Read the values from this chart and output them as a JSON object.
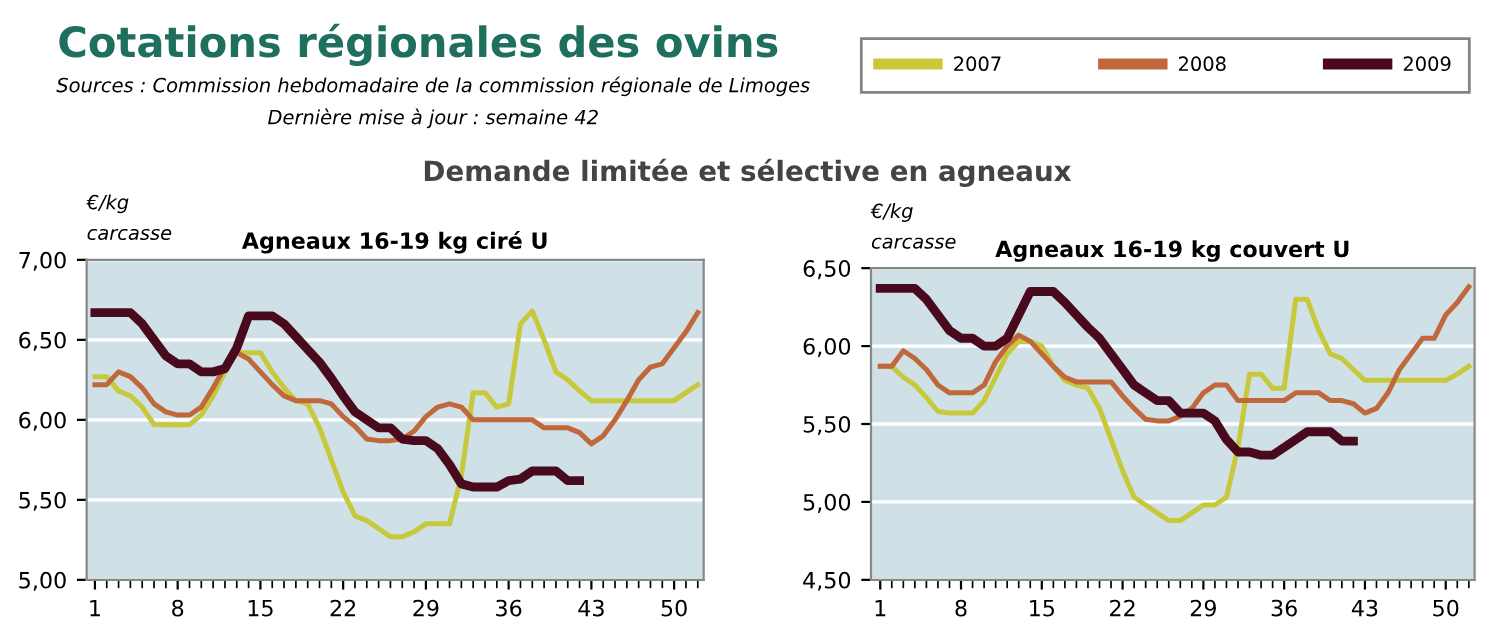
{
  "chart_data": [
    {
      "type": "line",
      "title": "Agneaux 16-19 kg ciré U",
      "ylabel": "€/kg\ncarcasse",
      "annotations": [
        "Cotations régionales des ovins",
        "Sources : Commission hebdomadaire de la commission régionale de Limoges",
        "Dernière mise à jour : semaine 42",
        "Demande limitée et sélective en agneaux"
      ],
      "x": [
        1,
        2,
        3,
        4,
        5,
        6,
        7,
        8,
        9,
        10,
        11,
        12,
        13,
        14,
        15,
        16,
        17,
        18,
        19,
        20,
        21,
        22,
        23,
        24,
        25,
        26,
        27,
        28,
        29,
        30,
        31,
        32,
        33,
        34,
        35,
        36,
        37,
        38,
        39,
        40,
        41,
        42,
        43,
        44,
        45,
        46,
        47,
        48,
        49,
        50,
        51,
        52
      ],
      "xlim": [
        0.3,
        52.5
      ],
      "xticks": [
        1,
        8,
        15,
        22,
        29,
        36,
        43,
        50
      ],
      "ylim": [
        5,
        7
      ],
      "yticks": [
        {
          "value": 5,
          "label": "5,00"
        },
        {
          "value": 5.5,
          "label": "5,50"
        },
        {
          "value": 6,
          "label": "6,00"
        },
        {
          "value": 6.5,
          "label": "6,50"
        },
        {
          "value": 7,
          "label": "7,00"
        }
      ],
      "grid": "y",
      "legend": "top right",
      "marker": "none",
      "line_style": "solid",
      "series": [
        {
          "name": "2007",
          "color": "#c8c83c",
          "values": [
            6.27,
            6.27,
            6.18,
            6.15,
            6.08,
            5.97,
            5.97,
            5.97,
            5.97,
            6.03,
            6.15,
            6.3,
            6.42,
            6.42,
            6.42,
            6.3,
            6.2,
            6.12,
            6.1,
            5.95,
            5.75,
            5.55,
            5.4,
            5.37,
            5.32,
            5.27,
            5.27,
            5.3,
            5.35,
            5.35,
            5.35,
            5.65,
            6.17,
            6.17,
            6.08,
            6.1,
            6.6,
            6.68,
            6.5,
            6.3,
            6.25,
            6.18,
            6.12,
            6.12,
            6.12,
            6.12,
            6.12,
            6.12,
            6.12,
            6.12,
            6.17,
            6.22
          ]
        },
        {
          "name": "2008",
          "color": "#c0683c",
          "values": [
            6.22,
            6.22,
            6.3,
            6.27,
            6.2,
            6.1,
            6.05,
            6.03,
            6.03,
            6.08,
            6.2,
            6.33,
            6.42,
            6.38,
            6.3,
            6.22,
            6.15,
            6.12,
            6.12,
            6.12,
            6.1,
            6.02,
            5.96,
            5.88,
            5.87,
            5.87,
            5.88,
            5.93,
            6.02,
            6.08,
            6.1,
            6.08,
            6.0,
            6.0,
            6.0,
            6.0,
            6.0,
            6.0,
            5.95,
            5.95,
            5.95,
            5.92,
            5.85,
            5.9,
            6.0,
            6.12,
            6.25,
            6.33,
            6.35,
            6.45,
            6.55,
            6.67
          ]
        },
        {
          "name": "2009",
          "color": "#4a0a1e",
          "values": [
            6.67,
            6.67,
            6.67,
            6.67,
            6.6,
            6.5,
            6.4,
            6.35,
            6.35,
            6.3,
            6.3,
            6.32,
            6.45,
            6.65,
            6.65,
            6.65,
            6.6,
            6.52,
            6.44,
            6.36,
            6.26,
            6.15,
            6.05,
            6.0,
            5.95,
            5.95,
            5.88,
            5.87,
            5.87,
            5.82,
            5.72,
            5.6,
            5.58,
            5.58,
            5.58,
            5.62,
            5.63,
            5.68,
            5.68,
            5.68,
            5.62,
            5.62,
            null,
            null,
            null,
            null,
            null,
            null,
            null,
            null,
            null,
            null
          ]
        }
      ]
    },
    {
      "type": "line",
      "title": "Agneaux 16-19 kg couvert U",
      "ylabel": "€/kg\ncarcasse",
      "x": [
        1,
        2,
        3,
        4,
        5,
        6,
        7,
        8,
        9,
        10,
        11,
        12,
        13,
        14,
        15,
        16,
        17,
        18,
        19,
        20,
        21,
        22,
        23,
        24,
        25,
        26,
        27,
        28,
        29,
        30,
        31,
        32,
        33,
        34,
        35,
        36,
        37,
        38,
        39,
        40,
        41,
        42,
        43,
        44,
        45,
        46,
        47,
        48,
        49,
        50,
        51,
        52
      ],
      "xlim": [
        0.2,
        52.5
      ],
      "xticks": [
        1,
        8,
        15,
        22,
        29,
        36,
        43,
        50
      ],
      "ylim": [
        4.5,
        6.5
      ],
      "yticks": [
        {
          "value": 4.5,
          "label": "4,50"
        },
        {
          "value": 5,
          "label": "5,00"
        },
        {
          "value": 5.5,
          "label": "5,50"
        },
        {
          "value": 6,
          "label": "6,00"
        },
        {
          "value": 6.5,
          "label": "6,50"
        }
      ],
      "grid": "y",
      "marker": "none",
      "line_style": "solid",
      "series": [
        {
          "color": "#c8c83c",
          "values": [
            5.87,
            5.87,
            5.8,
            5.75,
            5.67,
            5.58,
            5.57,
            5.57,
            5.57,
            5.65,
            5.8,
            5.95,
            6.03,
            6.03,
            6.0,
            5.87,
            5.78,
            5.75,
            5.73,
            5.6,
            5.4,
            5.2,
            5.03,
            4.98,
            4.93,
            4.88,
            4.88,
            4.93,
            4.98,
            4.98,
            5.03,
            5.35,
            5.82,
            5.82,
            5.73,
            5.73,
            6.3,
            6.3,
            6.1,
            5.95,
            5.92,
            5.85,
            5.78,
            5.78,
            5.78,
            5.78,
            5.78,
            5.78,
            5.78,
            5.78,
            5.82,
            5.87
          ]
        },
        {
          "color": "#c0683c",
          "values": [
            5.87,
            5.87,
            5.97,
            5.92,
            5.85,
            5.75,
            5.7,
            5.7,
            5.7,
            5.75,
            5.9,
            6.0,
            6.07,
            6.03,
            5.95,
            5.87,
            5.8,
            5.77,
            5.77,
            5.77,
            5.77,
            5.68,
            5.6,
            5.53,
            5.52,
            5.52,
            5.55,
            5.6,
            5.7,
            5.75,
            5.75,
            5.65,
            5.65,
            5.65,
            5.65,
            5.65,
            5.7,
            5.7,
            5.7,
            5.65,
            5.65,
            5.63,
            5.57,
            5.6,
            5.7,
            5.85,
            5.95,
            6.05,
            6.05,
            6.2,
            6.28,
            6.38
          ]
        },
        {
          "color": "#4a0a1e",
          "values": [
            6.37,
            6.37,
            6.37,
            6.37,
            6.3,
            6.2,
            6.1,
            6.05,
            6.05,
            6.0,
            6.0,
            6.05,
            6.2,
            6.35,
            6.35,
            6.35,
            6.28,
            6.2,
            6.12,
            6.05,
            5.95,
            5.85,
            5.75,
            5.7,
            5.65,
            5.65,
            5.57,
            5.57,
            5.57,
            5.52,
            5.4,
            5.32,
            5.32,
            5.3,
            5.3,
            5.35,
            5.4,
            5.45,
            5.45,
            5.45,
            5.39,
            5.39,
            null,
            null,
            null,
            null,
            null,
            null,
            null,
            null,
            null,
            null
          ]
        }
      ]
    }
  ]
}
